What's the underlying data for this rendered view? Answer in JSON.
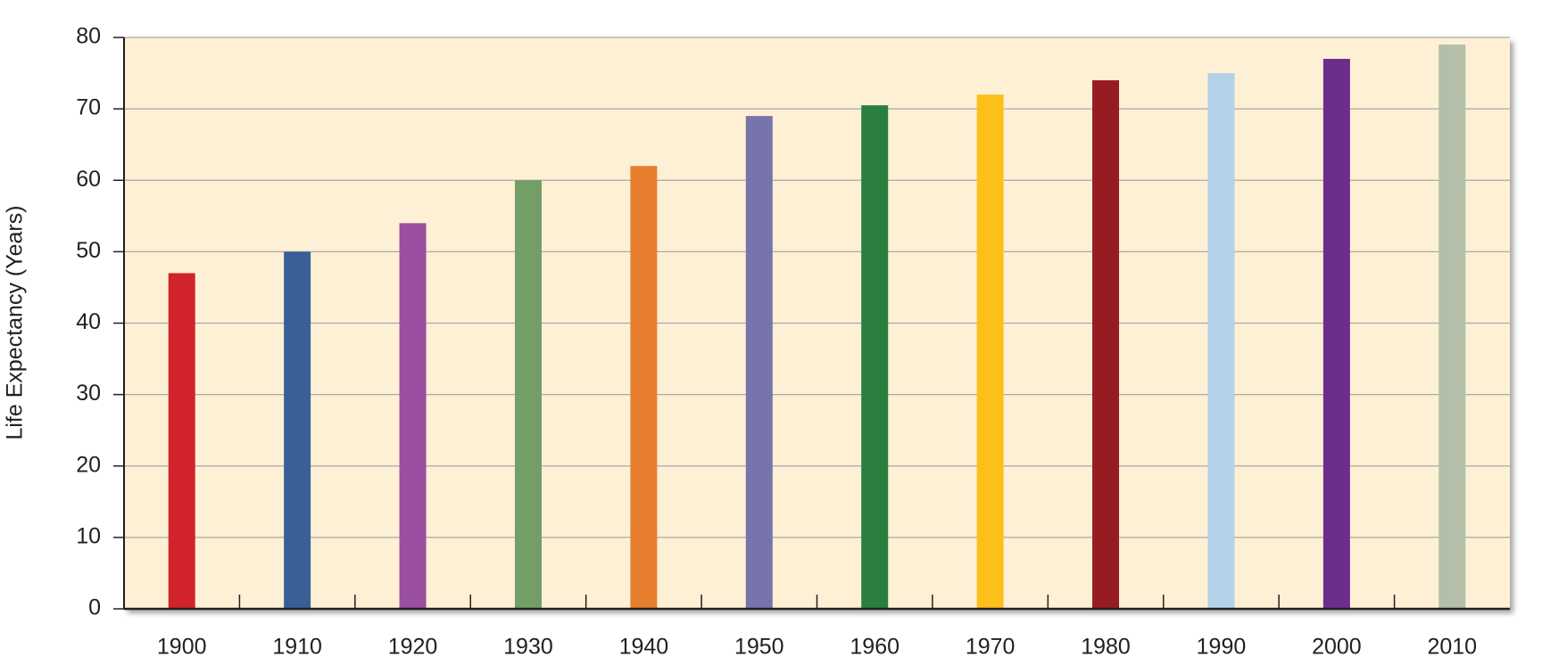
{
  "chart_data": {
    "type": "bar",
    "y_label": "Life Expectancy (Years)",
    "categories": [
      "1900",
      "1910",
      "1920",
      "1930",
      "1940",
      "1950",
      "1960",
      "1970",
      "1980",
      "1990",
      "2000",
      "2010"
    ],
    "values": [
      47,
      50,
      54,
      60,
      62,
      69,
      70.5,
      72,
      74,
      75,
      77,
      79
    ],
    "colors": [
      "#d2232a",
      "#3a5f96",
      "#9b4f9f",
      "#739e66",
      "#e67e2e",
      "#7674aa",
      "#2a7f3f",
      "#fdc01a",
      "#961c22",
      "#b3d2ea",
      "#6c2d8c",
      "#b3bfa9"
    ],
    "ylim": [
      0,
      80
    ],
    "yticks": [
      0,
      10,
      20,
      30,
      40,
      50,
      60,
      70,
      80
    ],
    "grid": true
  }
}
